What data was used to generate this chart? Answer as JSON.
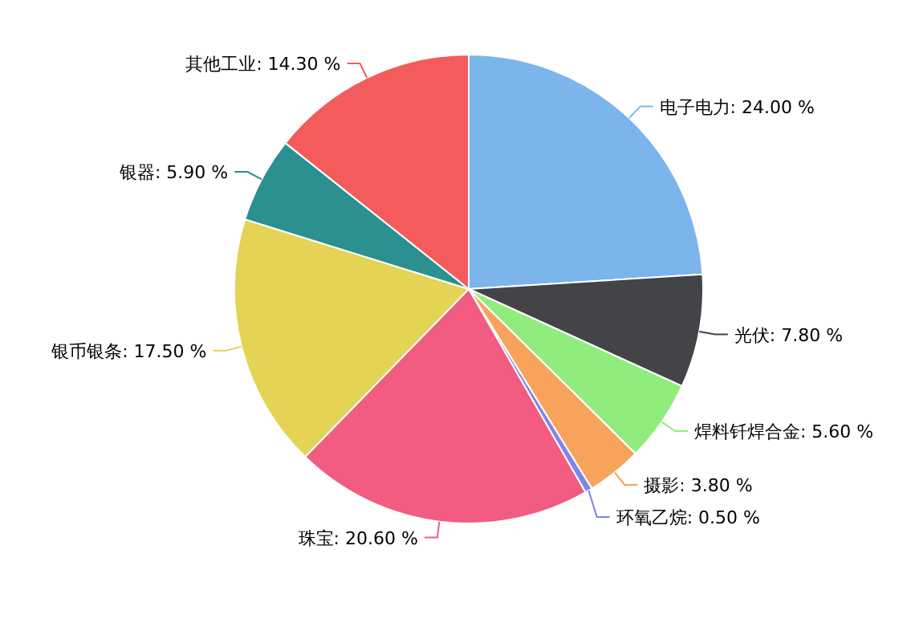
{
  "chart_data": {
    "type": "pie",
    "categories": [
      "电子电力",
      "光伏",
      "焊料钎焊合金",
      "摄影",
      "环氧乙烷",
      "珠宝",
      "银币银条",
      "银器",
      "其他工业"
    ],
    "values": [
      24.0,
      7.8,
      5.6,
      3.8,
      0.5,
      20.6,
      17.5,
      5.9,
      14.3
    ],
    "value_labels": [
      ": 24.00 %",
      ": 7.80 %",
      ": 5.60 %",
      ": 3.80 %",
      ": 0.50 %",
      ": 20.60 %",
      ": 17.50 %",
      ": 5.90 %",
      ": 14.30 %"
    ],
    "colors": [
      "#7cb5ec",
      "#434348",
      "#90ed7d",
      "#f7a35c",
      "#8085e9",
      "#f15c80",
      "#e4d354",
      "#2b908f",
      "#f45b5b"
    ]
  }
}
